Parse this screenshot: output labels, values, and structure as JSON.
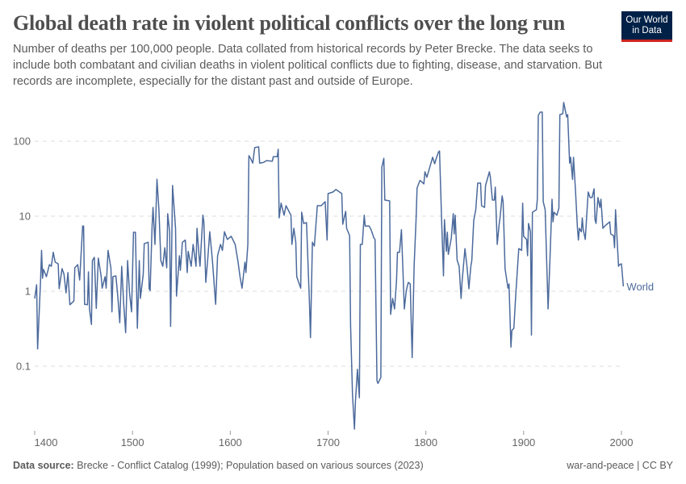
{
  "header": {
    "title": "Global death rate in violent political conflicts over the long run",
    "subtitle": "Number of deaths per 100,000 people. Data collated from historical records by Peter Brecke. The data seeks to include both combatant and civilian deaths in violent political conflicts due to fighting, disease, and starvation. But records are incomplete, especially for the distant past and outside of Europe.",
    "logo_line1": "Our World",
    "logo_line2": "in Data"
  },
  "footer": {
    "source_label": "Data source:",
    "source_text": "Brecke - Conflict Catalog (1999); Population based on various sources (2023)",
    "license": "war-and-peace | CC BY"
  },
  "colors": {
    "series": "#4c6a9c",
    "grid": "#dddddd",
    "text": "#5b5b5b",
    "logo_bg": "#002147",
    "logo_accent": "#ce261e"
  },
  "chart_data": {
    "type": "line",
    "title": "Global death rate in violent political conflicts over the long run",
    "xlabel": "",
    "ylabel": "",
    "yscale": "log",
    "xlim": [
      1400,
      2002
    ],
    "ylim": [
      0.013,
      350
    ],
    "x_ticks": [
      "1400",
      "1500",
      "1600",
      "1700",
      "1800",
      "1900",
      "2000"
    ],
    "y_ticks": [
      "0.1",
      "1",
      "10",
      "100"
    ],
    "grid": "horizontal dashed",
    "legend": "inline label at line end",
    "series": [
      {
        "name": "World",
        "points": [
          [
            1400,
            0.8
          ],
          [
            1402,
            1.22
          ],
          [
            1403,
            0.17
          ],
          [
            1406,
            1.41
          ],
          [
            1407,
            3.5
          ],
          [
            1408,
            1.49
          ],
          [
            1409,
            1.95
          ],
          [
            1412,
            1.56
          ],
          [
            1415,
            2.26
          ],
          [
            1417,
            2.15
          ],
          [
            1419,
            3.3
          ],
          [
            1421,
            2.44
          ],
          [
            1424,
            2.32
          ],
          [
            1425,
            1.08
          ],
          [
            1428,
            2.0
          ],
          [
            1430,
            1.68
          ],
          [
            1432,
            0.95
          ],
          [
            1434,
            1.77
          ],
          [
            1436,
            0.66
          ],
          [
            1440,
            0.74
          ],
          [
            1441,
            2.05
          ],
          [
            1444,
            2.26
          ],
          [
            1446,
            1.41
          ],
          [
            1449,
            7.4
          ],
          [
            1450,
            7.4
          ],
          [
            1451,
            0.67
          ],
          [
            1454,
            0.66
          ],
          [
            1455,
            1.81
          ],
          [
            1456,
            0.58
          ],
          [
            1458,
            0.36
          ],
          [
            1459,
            2.56
          ],
          [
            1461,
            2.83
          ],
          [
            1463,
            0.59
          ],
          [
            1465,
            2.76
          ],
          [
            1468,
            1.56
          ],
          [
            1469,
            1.1
          ],
          [
            1472,
            1.56
          ],
          [
            1473,
            1.1
          ],
          [
            1475,
            3.5
          ],
          [
            1478,
            2.0
          ],
          [
            1479,
            0.53
          ],
          [
            1480,
            1.56
          ],
          [
            1483,
            1.6
          ],
          [
            1485,
            0.84
          ],
          [
            1487,
            0.38
          ],
          [
            1489,
            2.15
          ],
          [
            1491,
            0.67
          ],
          [
            1493,
            0.28
          ],
          [
            1495,
            2.56
          ],
          [
            1497,
            0.95
          ],
          [
            1499,
            0.53
          ],
          [
            1501,
            6.1
          ],
          [
            1503,
            6.1
          ],
          [
            1505,
            0.32
          ],
          [
            1507,
            2.56
          ],
          [
            1508,
            0.8
          ],
          [
            1511,
            1.68
          ],
          [
            1512,
            4.3
          ],
          [
            1516,
            4.5
          ],
          [
            1517,
            1.08
          ],
          [
            1518,
            1.02
          ],
          [
            1520,
            7.1
          ],
          [
            1521,
            13.1
          ],
          [
            1523,
            4.2
          ],
          [
            1525,
            31
          ],
          [
            1527,
            12.2
          ],
          [
            1529,
            2.56
          ],
          [
            1531,
            2.15
          ],
          [
            1533,
            3.8
          ],
          [
            1535,
            2.05
          ],
          [
            1536,
            10.8
          ],
          [
            1538,
            6.2
          ],
          [
            1539,
            0.34
          ],
          [
            1541,
            25.6
          ],
          [
            1544,
            6.9
          ],
          [
            1545,
            0.86
          ],
          [
            1548,
            2.97
          ],
          [
            1549,
            1.9
          ],
          [
            1551,
            4.5
          ],
          [
            1554,
            4.8
          ],
          [
            1556,
            1.77
          ],
          [
            1557,
            3.4
          ],
          [
            1560,
            2.15
          ],
          [
            1562,
            4.2
          ],
          [
            1565,
            2.15
          ],
          [
            1566,
            6.9
          ],
          [
            1568,
            2.97
          ],
          [
            1569,
            2.15
          ],
          [
            1572,
            10.3
          ],
          [
            1573,
            8.4
          ],
          [
            1575,
            1.31
          ],
          [
            1577,
            2.76
          ],
          [
            1579,
            6.2
          ],
          [
            1581,
            3.3
          ],
          [
            1582,
            2.32
          ],
          [
            1585,
            0.67
          ],
          [
            1587,
            2.97
          ],
          [
            1590,
            4.2
          ],
          [
            1592,
            3.5
          ],
          [
            1594,
            6.2
          ],
          [
            1597,
            4.9
          ],
          [
            1601,
            5.4
          ],
          [
            1605,
            4.2
          ],
          [
            1608,
            2.44
          ],
          [
            1610,
            1.56
          ],
          [
            1612,
            1.1
          ],
          [
            1615,
            2.44
          ],
          [
            1616,
            1.77
          ],
          [
            1618,
            4.2
          ],
          [
            1619,
            64
          ],
          [
            1621,
            58
          ],
          [
            1623,
            51
          ],
          [
            1625,
            82
          ],
          [
            1629,
            84
          ],
          [
            1630,
            51
          ],
          [
            1634,
            52
          ],
          [
            1637,
            55
          ],
          [
            1643,
            54
          ],
          [
            1644,
            62
          ],
          [
            1648,
            62
          ],
          [
            1649,
            78
          ],
          [
            1650,
            9.5
          ],
          [
            1652,
            14.9
          ],
          [
            1655,
            10.3
          ],
          [
            1657,
            13.8
          ],
          [
            1660,
            11.6
          ],
          [
            1662,
            10.3
          ],
          [
            1663,
            4.2
          ],
          [
            1665,
            6.9
          ],
          [
            1667,
            4.5
          ],
          [
            1668,
            1.56
          ],
          [
            1672,
            1.1
          ],
          [
            1673,
            11.3
          ],
          [
            1675,
            8.0
          ],
          [
            1678,
            8.2
          ],
          [
            1681,
            0.67
          ],
          [
            1682,
            0.24
          ],
          [
            1684,
            4.5
          ],
          [
            1686,
            4.0
          ],
          [
            1689,
            13.8
          ],
          [
            1693,
            13.8
          ],
          [
            1697,
            15.6
          ],
          [
            1699,
            4.8
          ],
          [
            1700,
            20
          ],
          [
            1705,
            21
          ],
          [
            1708,
            22.7
          ],
          [
            1714,
            20
          ],
          [
            1715,
            7.8
          ],
          [
            1718,
            11.6
          ],
          [
            1719,
            6.9
          ],
          [
            1722,
            5.5
          ],
          [
            1723,
            0.35
          ],
          [
            1725,
            0.041
          ],
          [
            1727,
            0.0145
          ],
          [
            1728,
            0.034
          ],
          [
            1730,
            0.091
          ],
          [
            1732,
            0.038
          ],
          [
            1733,
            4.2
          ],
          [
            1735,
            4.2
          ],
          [
            1737,
            10.3
          ],
          [
            1738,
            7.4
          ],
          [
            1742,
            7.4
          ],
          [
            1744,
            6.6
          ],
          [
            1747,
            5.1
          ],
          [
            1748,
            4.9
          ],
          [
            1750,
            0.064
          ],
          [
            1751,
            0.059
          ],
          [
            1754,
            0.071
          ],
          [
            1755,
            45
          ],
          [
            1757,
            59
          ],
          [
            1758,
            16.4
          ],
          [
            1763,
            16
          ],
          [
            1764,
            0.49
          ],
          [
            1766,
            0.8
          ],
          [
            1768,
            0.58
          ],
          [
            1770,
            1.38
          ],
          [
            1771,
            3.3
          ],
          [
            1773,
            3.3
          ],
          [
            1775,
            6.6
          ],
          [
            1776,
            2.97
          ],
          [
            1778,
            0.58
          ],
          [
            1780,
            1.02
          ],
          [
            1782,
            1.31
          ],
          [
            1784,
            1.25
          ],
          [
            1786,
            0.13
          ],
          [
            1788,
            2.15
          ],
          [
            1790,
            8.8
          ],
          [
            1791,
            23.8
          ],
          [
            1794,
            30
          ],
          [
            1798,
            27
          ],
          [
            1799,
            39
          ],
          [
            1801,
            33
          ],
          [
            1804,
            45
          ],
          [
            1807,
            61
          ],
          [
            1809,
            50
          ],
          [
            1811,
            61
          ],
          [
            1813,
            72
          ],
          [
            1814,
            74
          ],
          [
            1816,
            9.5
          ],
          [
            1818,
            1.6
          ],
          [
            1819,
            9.0
          ],
          [
            1821,
            3.4
          ],
          [
            1822,
            6.1
          ],
          [
            1823,
            3.1
          ],
          [
            1826,
            5.1
          ],
          [
            1828,
            10.8
          ],
          [
            1829,
            5.8
          ],
          [
            1830,
            10.3
          ],
          [
            1832,
            2.6
          ],
          [
            1834,
            2.15
          ],
          [
            1836,
            0.8
          ],
          [
            1837,
            1.31
          ],
          [
            1840,
            3.7
          ],
          [
            1842,
            2.15
          ],
          [
            1844,
            1.08
          ],
          [
            1846,
            2.15
          ],
          [
            1847,
            2.56
          ],
          [
            1849,
            8.8
          ],
          [
            1851,
            12.2
          ],
          [
            1853,
            27.6
          ],
          [
            1856,
            27.6
          ],
          [
            1857,
            13.8
          ],
          [
            1860,
            13.1
          ],
          [
            1861,
            25.6
          ],
          [
            1865,
            39
          ],
          [
            1866,
            33
          ],
          [
            1868,
            16.4
          ],
          [
            1870,
            16.4
          ],
          [
            1871,
            24.4
          ],
          [
            1873,
            4.2
          ],
          [
            1875,
            7.8
          ],
          [
            1876,
            10
          ],
          [
            1878,
            18.6
          ],
          [
            1879,
            15.6
          ],
          [
            1881,
            2.0
          ],
          [
            1884,
            1.1
          ],
          [
            1885,
            1.25
          ],
          [
            1887,
            0.18
          ],
          [
            1888,
            0.3
          ],
          [
            1890,
            0.32
          ],
          [
            1892,
            0.91
          ],
          [
            1895,
            3.7
          ],
          [
            1898,
            3.5
          ],
          [
            1899,
            14.9
          ],
          [
            1900,
            5.4
          ],
          [
            1903,
            4.9
          ],
          [
            1904,
            2.97
          ],
          [
            1905,
            8.0
          ],
          [
            1907,
            6.2
          ],
          [
            1908,
            0.26
          ],
          [
            1909,
            11.3
          ],
          [
            1913,
            12.2
          ],
          [
            1914,
            16.8
          ],
          [
            1915,
            221
          ],
          [
            1917,
            244
          ],
          [
            1919,
            244
          ],
          [
            1920,
            15.6
          ],
          [
            1922,
            12.2
          ],
          [
            1925,
            0.58
          ],
          [
            1927,
            2.76
          ],
          [
            1929,
            16.8
          ],
          [
            1930,
            8.4
          ],
          [
            1931,
            11.3
          ],
          [
            1934,
            10.3
          ],
          [
            1936,
            12.8
          ],
          [
            1937,
            226
          ],
          [
            1940,
            232
          ],
          [
            1941,
            328
          ],
          [
            1944,
            210
          ],
          [
            1945,
            226
          ],
          [
            1947,
            51
          ],
          [
            1948,
            61
          ],
          [
            1950,
            31
          ],
          [
            1951,
            61
          ],
          [
            1953,
            21.6
          ],
          [
            1955,
            6.9
          ],
          [
            1956,
            4.8
          ],
          [
            1957,
            6.9
          ],
          [
            1959,
            6.2
          ],
          [
            1960,
            9.5
          ],
          [
            1961,
            6.6
          ],
          [
            1963,
            4.9
          ],
          [
            1966,
            21
          ],
          [
            1968,
            17.7
          ],
          [
            1970,
            17.7
          ],
          [
            1972,
            23.2
          ],
          [
            1973,
            9.0
          ],
          [
            1974,
            8.0
          ],
          [
            1976,
            17.7
          ],
          [
            1978,
            13.1
          ],
          [
            1979,
            16.8
          ],
          [
            1981,
            6.9
          ],
          [
            1983,
            7.4
          ],
          [
            1988,
            8.4
          ],
          [
            1989,
            5.8
          ],
          [
            1992,
            5.5
          ],
          [
            1993,
            3.8
          ],
          [
            1994,
            12.2
          ],
          [
            1997,
            2.15
          ],
          [
            1998,
            2.26
          ],
          [
            2000,
            2.32
          ],
          [
            2002,
            1.16
          ]
        ]
      }
    ]
  }
}
